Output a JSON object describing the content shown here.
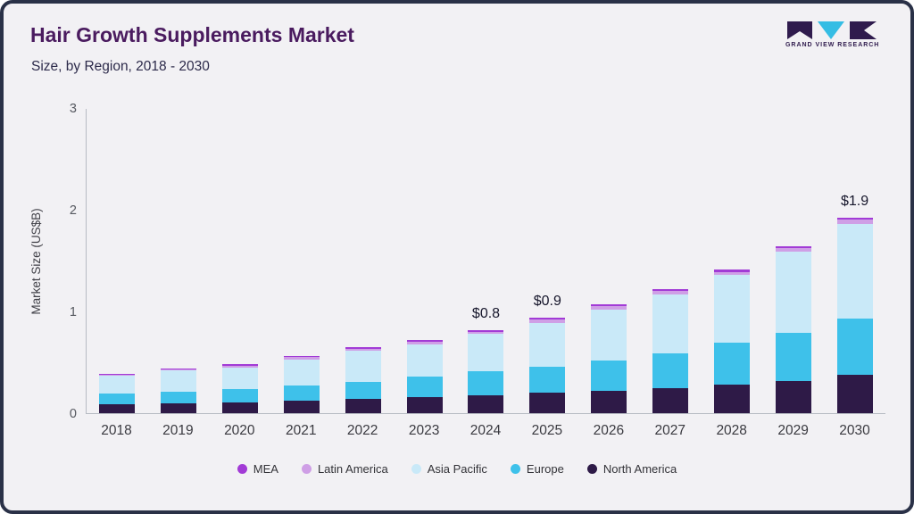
{
  "header": {
    "title": "Hair Growth Supplements Market",
    "subtitle": "Size, by Region, 2018 - 2030",
    "logo_text": "GRAND VIEW RESEARCH"
  },
  "colors": {
    "title": "#4a1b5f",
    "frame_border": "#2a3147",
    "background": "#f2f1f4"
  },
  "chart_data": {
    "type": "bar",
    "stacked": true,
    "title": "Hair Growth Supplements Market",
    "subtitle": "Size, by Region, 2018 - 2030",
    "xlabel": "",
    "ylabel": "Market Size (US$B)",
    "ylim": [
      0,
      3
    ],
    "yticks": [
      0,
      1,
      2,
      3
    ],
    "grid": false,
    "legend_position": "bottom",
    "categories": [
      "2018",
      "2019",
      "2020",
      "2021",
      "2022",
      "2023",
      "2024",
      "2025",
      "2026",
      "2027",
      "2028",
      "2029",
      "2030"
    ],
    "series": [
      {
        "name": "North America",
        "color": "#2e1a47",
        "values": [
          0.09,
          0.1,
          0.11,
          0.12,
          0.14,
          0.16,
          0.18,
          0.2,
          0.22,
          0.25,
          0.28,
          0.32,
          0.38
        ]
      },
      {
        "name": "Europe",
        "color": "#3ec1ea",
        "values": [
          0.1,
          0.11,
          0.13,
          0.15,
          0.17,
          0.2,
          0.23,
          0.26,
          0.3,
          0.34,
          0.41,
          0.47,
          0.55
        ]
      },
      {
        "name": "Asia Pacific",
        "color": "#c9e9f8",
        "values": [
          0.18,
          0.21,
          0.21,
          0.26,
          0.3,
          0.32,
          0.37,
          0.43,
          0.5,
          0.58,
          0.67,
          0.8,
          0.93
        ]
      },
      {
        "name": "Latin America",
        "color": "#cf9fe6",
        "values": [
          0.01,
          0.01,
          0.02,
          0.02,
          0.02,
          0.02,
          0.02,
          0.03,
          0.03,
          0.03,
          0.03,
          0.03,
          0.04
        ]
      },
      {
        "name": "MEA",
        "color": "#a23bd6",
        "values": [
          0.01,
          0.01,
          0.01,
          0.01,
          0.02,
          0.02,
          0.02,
          0.02,
          0.02,
          0.02,
          0.02,
          0.02,
          0.02
        ]
      }
    ],
    "annotations": [
      {
        "category": "2024",
        "label": "$0.8"
      },
      {
        "category": "2025",
        "label": "$0.9"
      },
      {
        "category": "2030",
        "label": "$1.9"
      }
    ],
    "legend": [
      "MEA",
      "Latin America",
      "Asia Pacific",
      "Europe",
      "North America"
    ]
  }
}
